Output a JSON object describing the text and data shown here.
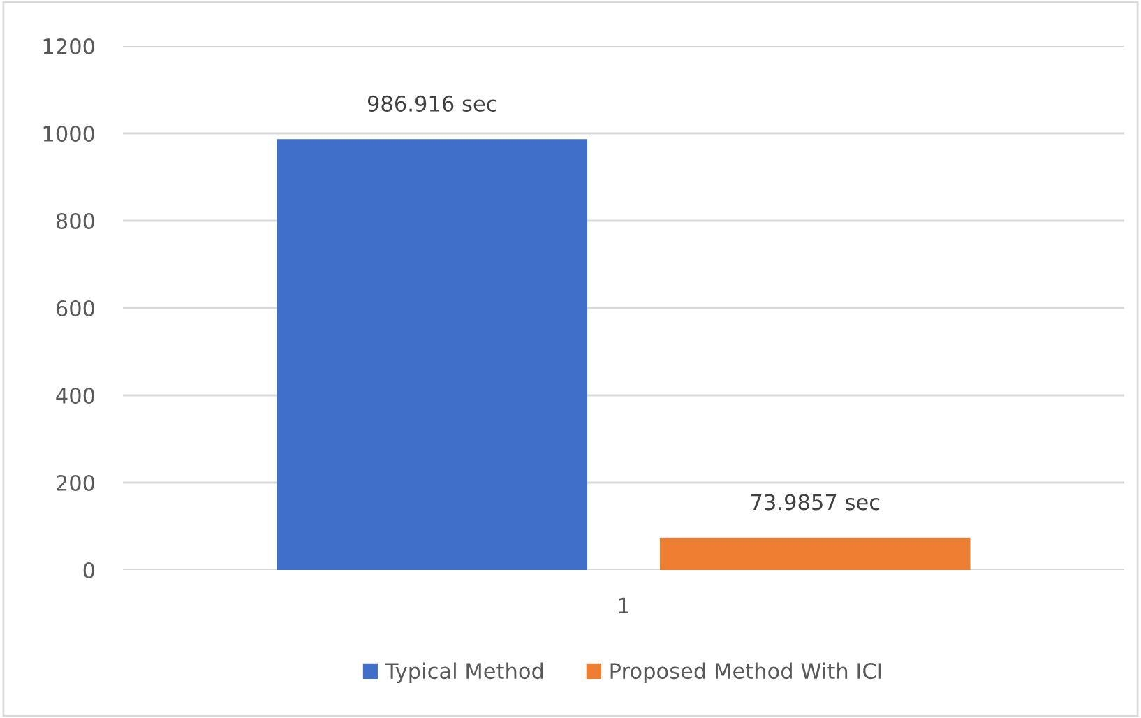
{
  "chart_data": {
    "type": "bar",
    "categories": [
      "1"
    ],
    "series": [
      {
        "name": "Typical Method",
        "color": "#3f6fc9",
        "values": [
          986.916
        ],
        "value_labels": [
          "986.916 sec"
        ]
      },
      {
        "name": "Proposed Method With ICI",
        "color": "#ed7d31",
        "values": [
          73.9857
        ],
        "value_labels": [
          "73.9857 sec"
        ]
      }
    ],
    "ylim": [
      0,
      1200
    ],
    "yticks": [
      0,
      200,
      400,
      600,
      800,
      1000,
      1200
    ],
    "grid": "y",
    "legend": "bottom"
  }
}
